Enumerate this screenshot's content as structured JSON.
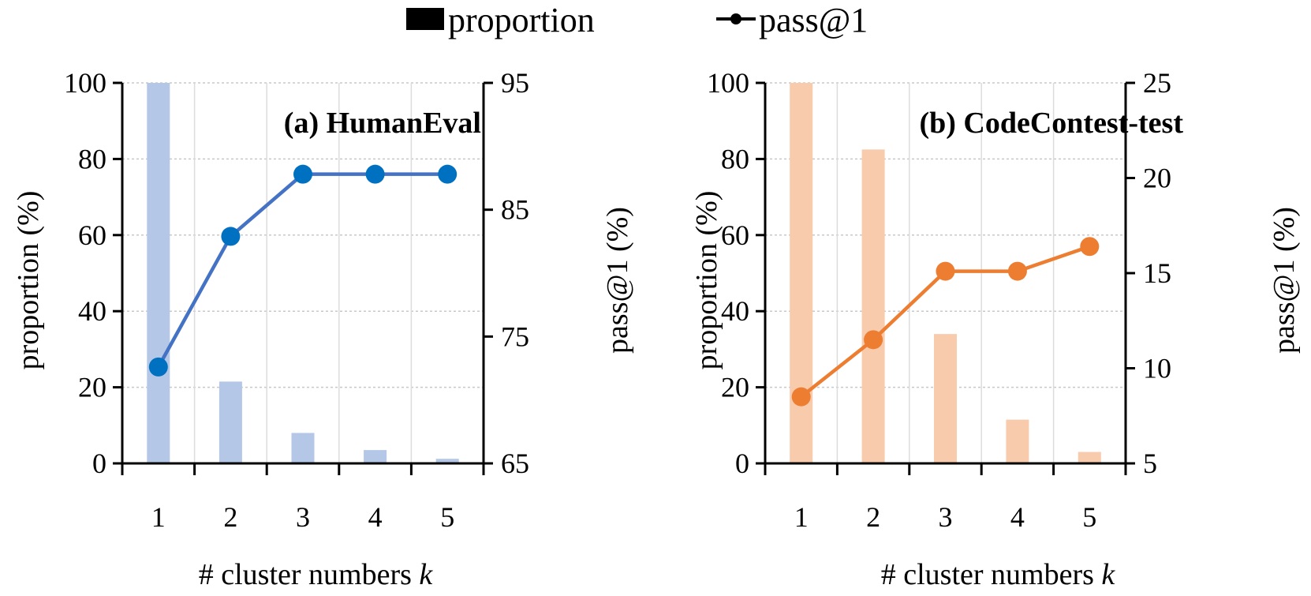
{
  "legend": {
    "bar_label": "proportion",
    "line_label": "pass@1"
  },
  "chart_data": [
    {
      "type": "bar+line",
      "title": "(a) HumanEval",
      "xlabel_prefix": "# cluster numbers ",
      "xlabel_var": "k",
      "ylabel_left": "proportion (%)",
      "ylabel_right": "pass@1 (%)",
      "categories": [
        "1",
        "2",
        "3",
        "4",
        "5"
      ],
      "ylim_left": [
        0,
        100
      ],
      "yticks_left": [
        0,
        20,
        40,
        60,
        80,
        100
      ],
      "ylim_right": [
        65,
        95
      ],
      "yticks_right": [
        65,
        75,
        85,
        95
      ],
      "series": [
        {
          "name": "proportion",
          "axis": "left",
          "kind": "bar",
          "color": "#b4c7e7",
          "values": [
            100,
            21.5,
            8,
            3.5,
            1.2
          ]
        },
        {
          "name": "pass@1",
          "axis": "right",
          "kind": "line",
          "color": "#4472c4",
          "marker_color": "#0070c0",
          "values": [
            72.6,
            82.9,
            87.8,
            87.8,
            87.8
          ]
        }
      ],
      "grid": true
    },
    {
      "type": "bar+line",
      "title": "(b) CodeContest-test",
      "xlabel_prefix": "# cluster numbers ",
      "xlabel_var": "k",
      "ylabel_left": "proportion (%)",
      "ylabel_right": "pass@1 (%)",
      "categories": [
        "1",
        "2",
        "3",
        "4",
        "5"
      ],
      "ylim_left": [
        0,
        100
      ],
      "yticks_left": [
        0,
        20,
        40,
        60,
        80,
        100
      ],
      "ylim_right": [
        5,
        25
      ],
      "yticks_right": [
        5,
        10,
        15,
        20,
        25
      ],
      "series": [
        {
          "name": "proportion",
          "axis": "left",
          "kind": "bar",
          "color": "#f8cbad",
          "values": [
            100,
            82.5,
            34,
            11.5,
            3
          ]
        },
        {
          "name": "pass@1",
          "axis": "right",
          "kind": "line",
          "color": "#ed7d31",
          "marker_color": "#ed7d31",
          "values": [
            8.5,
            11.5,
            15.1,
            15.1,
            16.4
          ]
        }
      ],
      "grid": true
    }
  ]
}
